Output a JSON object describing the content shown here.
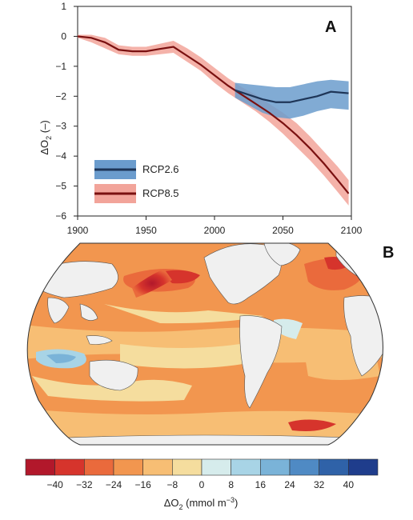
{
  "chart_data": [
    {
      "type": "line",
      "panel": "A",
      "ylabel_base": "ΔO",
      "ylabel_sub": "2",
      "ylabel_unit": " (–)",
      "xlim": [
        1900,
        2100
      ],
      "ylim": [
        -6,
        1
      ],
      "xticks": [
        1900,
        1950,
        2000,
        2050,
        2100
      ],
      "yticks": [
        1,
        0,
        -1,
        -2,
        -3,
        -4,
        -5,
        -6
      ],
      "xticklabels": [
        "1900",
        "1950",
        "2000",
        "2050",
        "2100"
      ],
      "yticklabels": [
        "1",
        "0",
        "−1",
        "−2",
        "−3",
        "−4",
        "−5",
        "−6"
      ],
      "legend_position": "lower-left",
      "series": [
        {
          "name": "RCP8.5",
          "color": "#7a1010",
          "band_color": "#f2a49a",
          "x": [
            1900,
            1910,
            1920,
            1930,
            1940,
            1950,
            1960,
            1970,
            1980,
            1990,
            2000,
            2010,
            2020,
            2030,
            2040,
            2050,
            2060,
            2070,
            2080,
            2090,
            2098
          ],
          "values": [
            0.0,
            -0.05,
            -0.2,
            -0.45,
            -0.5,
            -0.5,
            -0.42,
            -0.35,
            -0.65,
            -0.95,
            -1.3,
            -1.65,
            -1.95,
            -2.25,
            -2.55,
            -2.9,
            -3.3,
            -3.75,
            -4.25,
            -4.8,
            -5.25
          ],
          "upper": [
            0.05,
            0.05,
            -0.05,
            -0.3,
            -0.35,
            -0.35,
            -0.25,
            -0.15,
            -0.4,
            -0.7,
            -1.05,
            -1.4,
            -1.7,
            -1.95,
            -2.25,
            -2.55,
            -2.9,
            -3.35,
            -3.85,
            -4.35,
            -4.8
          ],
          "lower": [
            -0.05,
            -0.2,
            -0.4,
            -0.6,
            -0.65,
            -0.65,
            -0.6,
            -0.55,
            -0.85,
            -1.15,
            -1.55,
            -1.9,
            -2.2,
            -2.5,
            -2.85,
            -3.25,
            -3.7,
            -4.15,
            -4.65,
            -5.2,
            -5.65
          ]
        },
        {
          "name": "RCP2.6",
          "color": "#1e3557",
          "band_color": "#6b9ccd",
          "x": [
            2015,
            2025,
            2035,
            2045,
            2055,
            2065,
            2075,
            2085,
            2098
          ],
          "values": [
            -1.8,
            -1.95,
            -2.1,
            -2.2,
            -2.2,
            -2.1,
            -2.0,
            -1.85,
            -1.9
          ],
          "upper": [
            -1.55,
            -1.6,
            -1.65,
            -1.7,
            -1.7,
            -1.6,
            -1.5,
            -1.45,
            -1.5
          ],
          "lower": [
            -2.05,
            -2.3,
            -2.55,
            -2.7,
            -2.75,
            -2.65,
            -2.5,
            -2.4,
            -2.45
          ]
        }
      ]
    },
    {
      "type": "heatmap",
      "panel": "B",
      "projection": "global ocean map (Robinson-like)",
      "land_color": "#f0f0f0",
      "colorbar": {
        "label_base": "ΔO",
        "label_sub": "2",
        "label_unit": " (mmol m",
        "label_sup": "−3",
        "label_close": ")",
        "bins": [
          -48,
          -40,
          -32,
          -24,
          -16,
          -8,
          0,
          8,
          16,
          24,
          32,
          40,
          48
        ],
        "ticks": [
          "−40",
          "−32",
          "−24",
          "−16",
          "−8",
          "0",
          "8",
          "16",
          "24",
          "32",
          "40"
        ],
        "tick_values": [
          -40,
          -32,
          -24,
          -16,
          -8,
          0,
          8,
          16,
          24,
          32,
          40
        ],
        "colors": [
          "#b2182b",
          "#d6342c",
          "#ea6a3c",
          "#f2964f",
          "#f7be74",
          "#f5dd9e",
          "#d6ecec",
          "#a8d4e6",
          "#7ab3d8",
          "#4f8ac4",
          "#2f62a8",
          "#1f3d8c"
        ]
      }
    }
  ]
}
